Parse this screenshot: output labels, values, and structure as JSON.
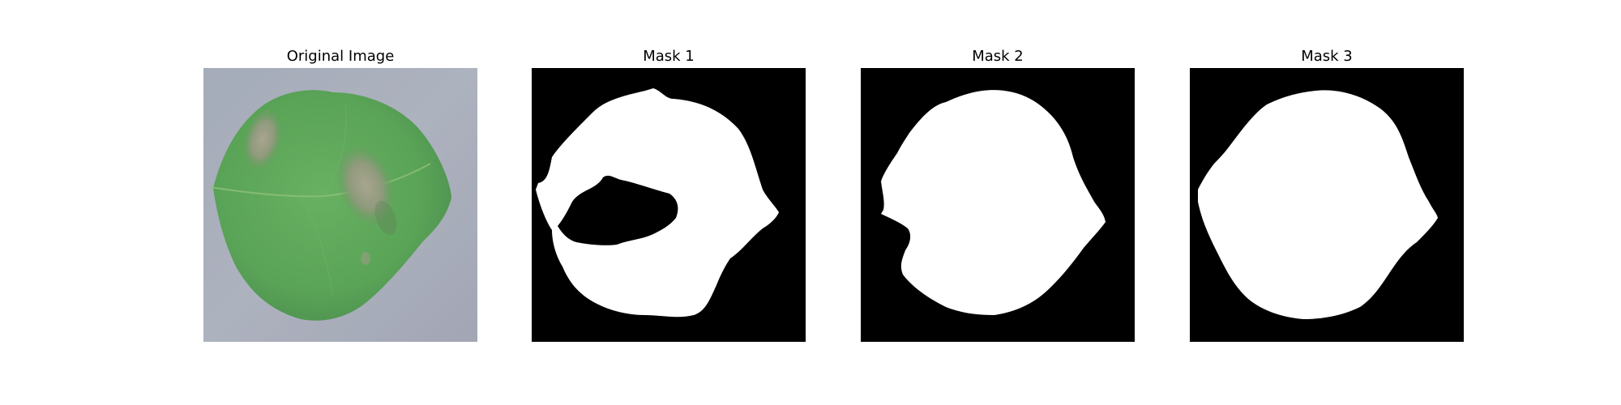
{
  "figure": {
    "panels": [
      {
        "title": "Original Image"
      },
      {
        "title": "Mask 1"
      },
      {
        "title": "Mask 2"
      },
      {
        "title": "Mask 3"
      }
    ]
  },
  "colors": {
    "background": "#a6abb8",
    "leaf_green": "#5ea85a",
    "leaf_dark": "#4f9450",
    "lesion": "#9c9a86",
    "mask_fg": "#ffffff",
    "mask_bg": "#000000"
  }
}
